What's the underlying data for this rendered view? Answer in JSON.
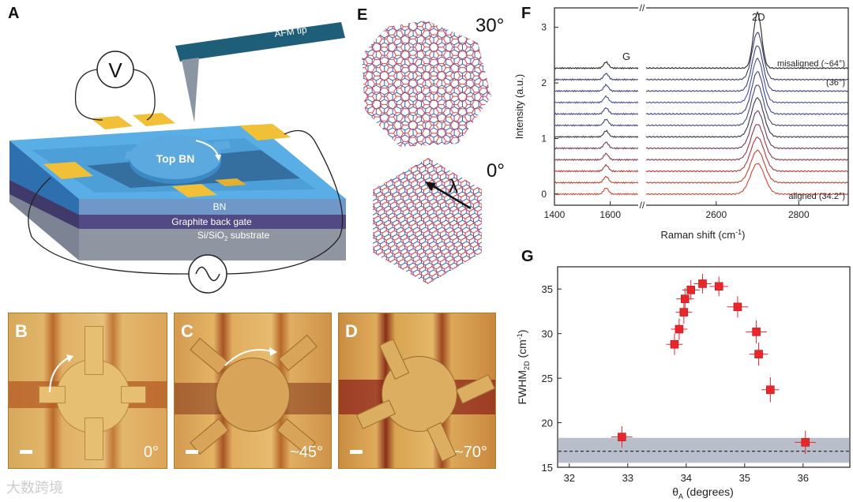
{
  "panels": {
    "a": {
      "letter": "A",
      "afm_tip": "AFM tip",
      "voltmeter": "V",
      "top_bn": "Top BN",
      "bn": "BN",
      "back_gate": "Graphite back gate",
      "substrate_a": "Si/SiO",
      "substrate_sub": "2",
      "substrate_b": " substrate"
    },
    "b": {
      "letter": "B",
      "angle": "0°"
    },
    "c": {
      "letter": "C",
      "angle": "~45°"
    },
    "d": {
      "letter": "D",
      "angle": "~70°"
    },
    "e": {
      "letter": "E",
      "top_angle": "30°",
      "bottom_angle": "0°",
      "lambda": "λ"
    },
    "f": {
      "letter": "F"
    },
    "g": {
      "letter": "G"
    }
  },
  "colors": {
    "device_blue": "#4d9fd8",
    "gold": "#f2c037",
    "marker_red": "#e8262b",
    "band_gray": "#b9bfca"
  },
  "chart_data": [
    {
      "id": "F",
      "type": "line",
      "xlabel": "Raman shift (cm",
      "xlabel_sup": "-1",
      "xlabel_end": ")",
      "ylabel": "Intensity (a.u.)",
      "x_ticks": [
        "1400",
        "1600",
        "2600",
        "2800"
      ],
      "y_ticks": [
        "0",
        "1",
        "2",
        "3"
      ],
      "axis_break": "//",
      "peak_labels": {
        "g": "G",
        "two_d": "2D"
      },
      "annotations": {
        "top": "misaligned (~64°)",
        "middle": "(36°)",
        "bottom": "aligned (34.2°)"
      },
      "series_count": 12,
      "series_colors": [
        "#d9432f",
        "#c4402f",
        "#a83a36",
        "#8f3a45",
        "#6c3a56",
        "#353542",
        "#48467f",
        "#3c4096",
        "#4a4ea8",
        "#3d4285",
        "#3b3f6a",
        "#252525"
      ]
    },
    {
      "id": "G",
      "type": "scatter",
      "xlabel": "θ",
      "xlabel_sub": "A",
      "xlabel_end": " (degrees)",
      "ylabel": "FWHM",
      "ylabel_sub": "2D",
      "ylabel_end": " (cm",
      "ylabel_sup": "-1",
      "ylabel_close": ")",
      "xlim": [
        31.8,
        36.8
      ],
      "ylim": [
        15,
        37.5
      ],
      "x_ticks": [
        "32",
        "33",
        "34",
        "35",
        "36"
      ],
      "y_ticks": [
        "15",
        "20",
        "25",
        "30",
        "35"
      ],
      "reference_line": 16.8,
      "reference_band": [
        15.5,
        18.3
      ],
      "points": [
        {
          "x": 32.9,
          "y": 18.4,
          "xerr": 0.18,
          "yerr": 1.2
        },
        {
          "x": 33.8,
          "y": 28.8,
          "xerr": 0.14,
          "yerr": 1.2
        },
        {
          "x": 33.88,
          "y": 30.5,
          "xerr": 0.14,
          "yerr": 1.2
        },
        {
          "x": 33.96,
          "y": 32.4,
          "xerr": 0.14,
          "yerr": 1.3
        },
        {
          "x": 33.98,
          "y": 33.9,
          "xerr": 0.15,
          "yerr": 1.2
        },
        {
          "x": 34.08,
          "y": 34.9,
          "xerr": 0.15,
          "yerr": 1.1
        },
        {
          "x": 34.28,
          "y": 35.6,
          "xerr": 0.15,
          "yerr": 1.1
        },
        {
          "x": 34.56,
          "y": 35.3,
          "xerr": 0.16,
          "yerr": 1.1
        },
        {
          "x": 34.88,
          "y": 33.0,
          "xerr": 0.18,
          "yerr": 1.2
        },
        {
          "x": 35.2,
          "y": 30.2,
          "xerr": 0.18,
          "yerr": 1.3
        },
        {
          "x": 35.24,
          "y": 27.7,
          "xerr": 0.16,
          "yerr": 1.3
        },
        {
          "x": 35.44,
          "y": 23.7,
          "xerr": 0.15,
          "yerr": 1.4
        },
        {
          "x": 36.04,
          "y": 17.8,
          "xerr": 0.18,
          "yerr": 1.3
        }
      ]
    }
  ],
  "watermark": "大数跨境"
}
